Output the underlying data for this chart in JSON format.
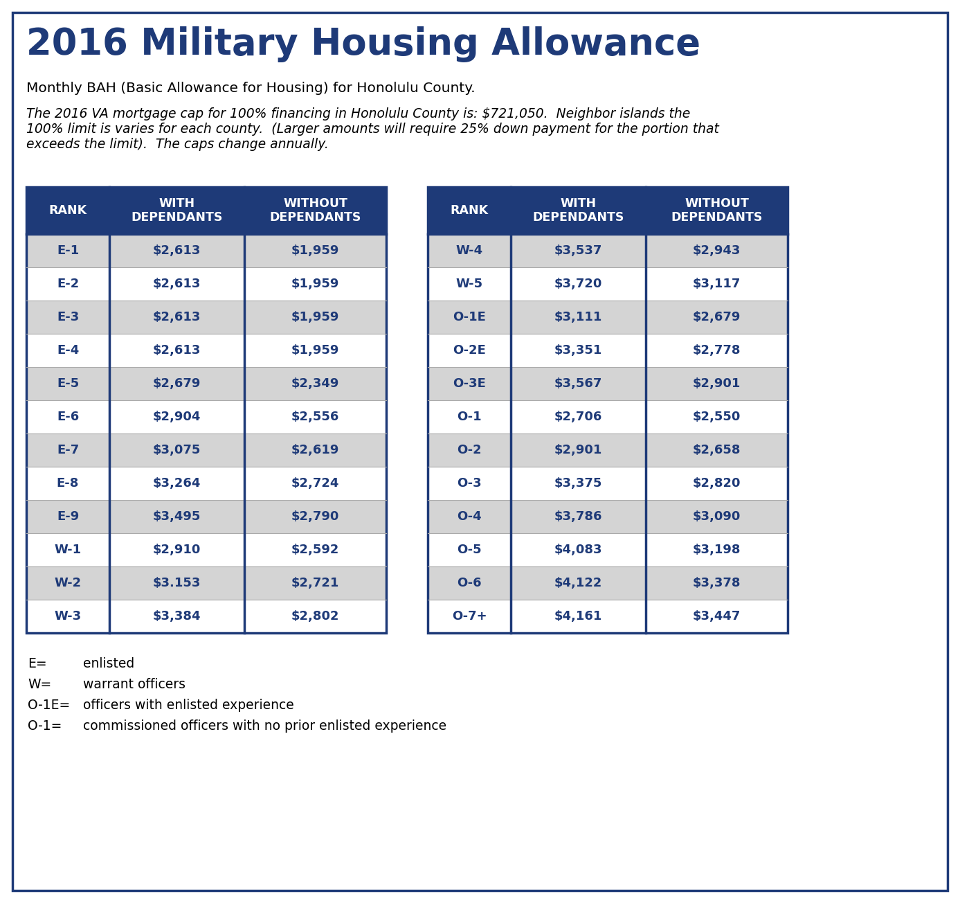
{
  "title": "2016 Military Housing Allowance",
  "subtitle": "Monthly BAH (Basic Allowance for Housing) for Honolulu County.",
  "note_line1": "The 2016 VA mortgage cap for 100% financing in Honolulu County is: $721,050.  Neighbor islands the",
  "note_line2": "100% limit is varies for each county.  (Larger amounts will require 25% down payment for the portion that",
  "note_line3": "exceeds the limit).  The caps change annually.",
  "header_bg": "#1e3a78",
  "header_text": "#ffffff",
  "row_bg_odd": "#d4d4d4",
  "row_bg_even": "#ffffff",
  "row_text": "#1e3a78",
  "outer_bg": "#ffffff",
  "border_color": "#1e3a78",
  "title_color": "#1e3a78",
  "col_headers": [
    "RANK",
    "WITH\nDEPENDANTS",
    "WITHOUT\nDEPENDANTS"
  ],
  "left_table": [
    [
      "E-1",
      "$2,613",
      "$1,959"
    ],
    [
      "E-2",
      "$2,613",
      "$1,959"
    ],
    [
      "E-3",
      "$2,613",
      "$1,959"
    ],
    [
      "E-4",
      "$2,613",
      "$1,959"
    ],
    [
      "E-5",
      "$2,679",
      "$2,349"
    ],
    [
      "E-6",
      "$2,904",
      "$2,556"
    ],
    [
      "E-7",
      "$3,075",
      "$2,619"
    ],
    [
      "E-8",
      "$3,264",
      "$2,724"
    ],
    [
      "E-9",
      "$3,495",
      "$2,790"
    ],
    [
      "W-1",
      "$2,910",
      "$2,592"
    ],
    [
      "W-2",
      "$3.153",
      "$2,721"
    ],
    [
      "W-3",
      "$3,384",
      "$2,802"
    ]
  ],
  "right_table": [
    [
      "W-4",
      "$3,537",
      "$2,943"
    ],
    [
      "W-5",
      "$3,720",
      "$3,117"
    ],
    [
      "O-1E",
      "$3,111",
      "$2,679"
    ],
    [
      "O-2E",
      "$3,351",
      "$2,778"
    ],
    [
      "O-3E",
      "$3,567",
      "$2,901"
    ],
    [
      "O-1",
      "$2,706",
      "$2,550"
    ],
    [
      "O-2",
      "$2,901",
      "$2,658"
    ],
    [
      "O-3",
      "$3,375",
      "$2,820"
    ],
    [
      "O-4",
      "$3,786",
      "$3,090"
    ],
    [
      "O-5",
      "$4,083",
      "$3,198"
    ],
    [
      "O-6",
      "$4,122",
      "$3,378"
    ],
    [
      "O-7+",
      "$4,161",
      "$3,447"
    ]
  ],
  "legend": [
    [
      "E=",
      "enlisted"
    ],
    [
      "W=",
      "warrant officers"
    ],
    [
      "O-1E=",
      "officers with enlisted experience"
    ],
    [
      "O-1=",
      "commissioned officers with no prior enlisted experience"
    ]
  ],
  "figw": 13.87,
  "figh": 13.04,
  "dpi": 100
}
